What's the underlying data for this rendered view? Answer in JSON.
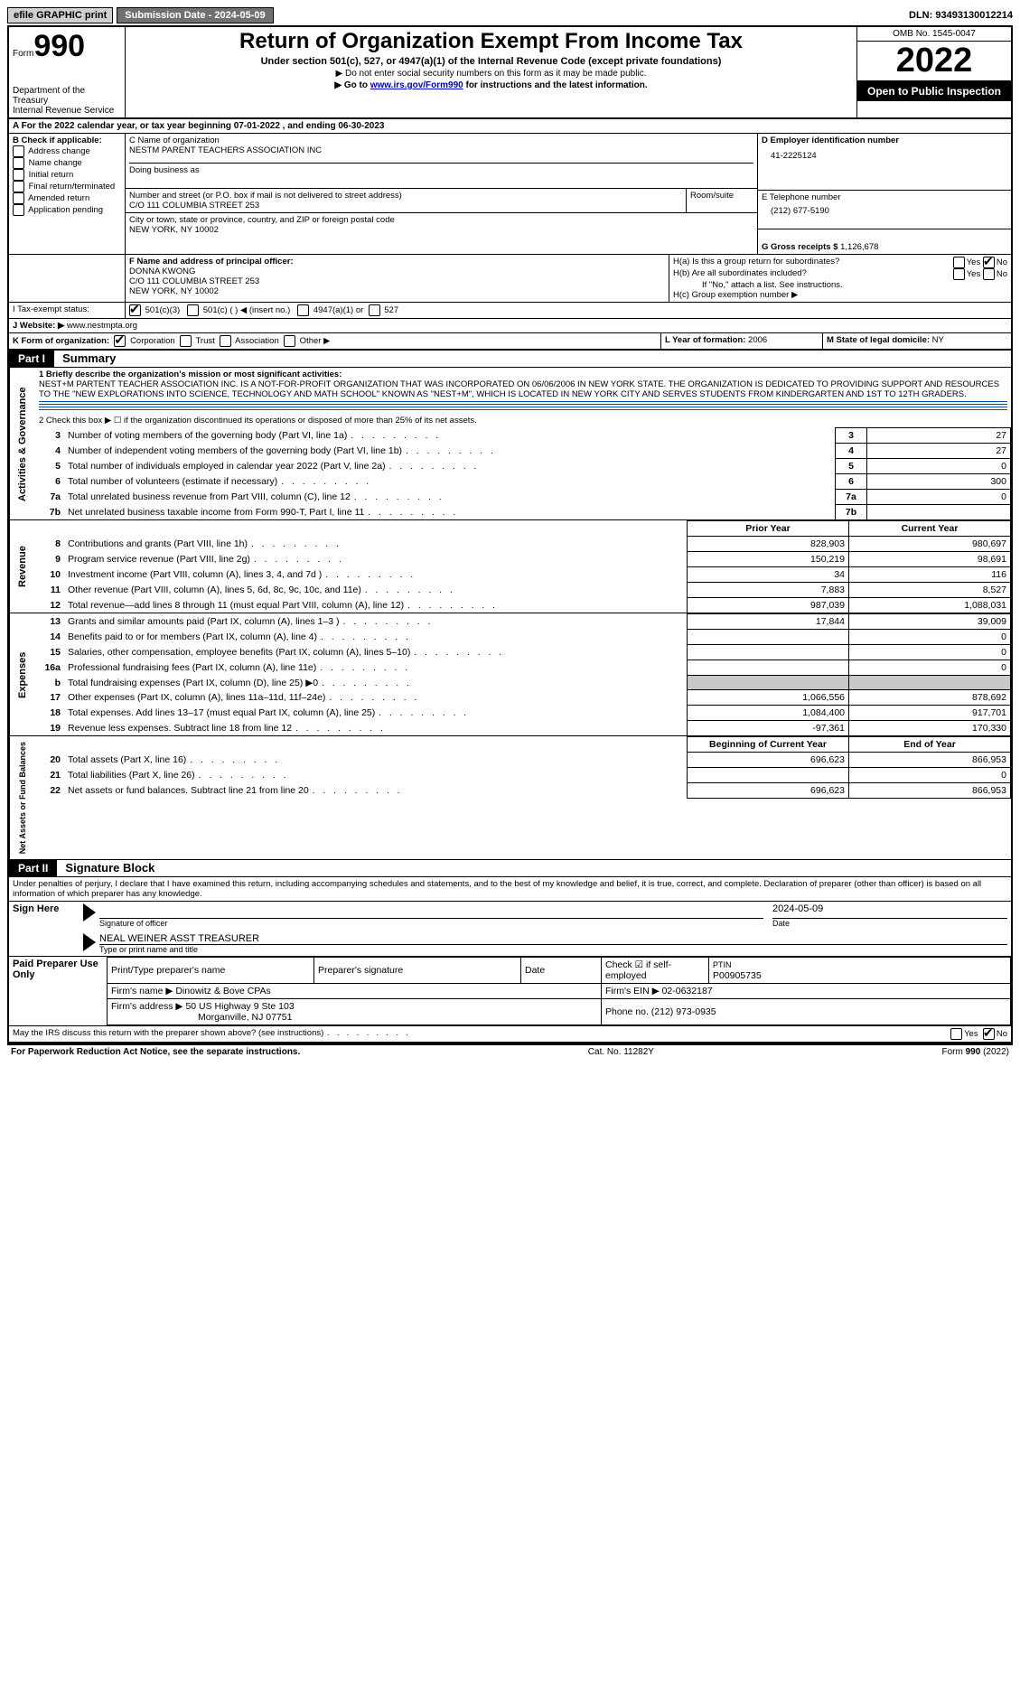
{
  "topbar": {
    "efile": "efile GRAPHIC print",
    "submission_label": "Submission Date - ",
    "submission_date": "2024-05-09",
    "dln_label": "DLN: ",
    "dln": "93493130012214"
  },
  "header": {
    "form_label": "Form",
    "form_number": "990",
    "dept1": "Department of the Treasury",
    "dept2": "Internal Revenue Service",
    "title": "Return of Organization Exempt From Income Tax",
    "sub1": "Under section 501(c), 527, or 4947(a)(1) of the Internal Revenue Code (except private foundations)",
    "sub2": "▶ Do not enter social security numbers on this form as it may be made public.",
    "sub3a": "▶ Go to ",
    "sub3_link": "www.irs.gov/Form990",
    "sub3b": " for instructions and the latest information.",
    "omb": "OMB No. 1545-0047",
    "year": "2022",
    "open": "Open to Public Inspection"
  },
  "section_a": {
    "text_a": "A For the 2022 calendar year, or tax year beginning ",
    "begin": "07-01-2022",
    "text_b": "   , and ending ",
    "end": "06-30-2023"
  },
  "box_b": {
    "label": "B Check if applicable:",
    "items": [
      "Address change",
      "Name change",
      "Initial return",
      "Final return/terminated",
      "Amended return",
      "Application pending"
    ]
  },
  "box_c": {
    "label": "C Name of organization",
    "name": "NESTM PARENT TEACHERS ASSOCIATION INC",
    "dba_label": "Doing business as",
    "addr_label": "Number and street (or P.O. box if mail is not delivered to street address)",
    "room_label": "Room/suite",
    "addr": "C/O 111 COLUMBIA STREET 253",
    "city_label": "City or town, state or province, country, and ZIP or foreign postal code",
    "city": "NEW YORK, NY  10002"
  },
  "box_d": {
    "label": "D Employer identification number",
    "ein": "41-2225124"
  },
  "box_e": {
    "label": "E Telephone number",
    "phone": "(212) 677-5190"
  },
  "box_g": {
    "label": "G Gross receipts $ ",
    "amount": "1,126,678"
  },
  "box_f": {
    "label": "F Name and address of principal officer:",
    "name": "DONNA KWONG",
    "addr1": "C/O 111 COLUMBIA STREET 253",
    "addr2": "NEW YORK, NY  10002"
  },
  "box_h": {
    "ha": "H(a)  Is this a group return for subordinates?",
    "hb": "H(b)  Are all subordinates included?",
    "hb_note": "If \"No,\" attach a list. See instructions.",
    "hc": "H(c)  Group exemption number ▶",
    "yes": "Yes",
    "no": "No"
  },
  "box_i": {
    "label": "I   Tax-exempt status:",
    "opt1": "501(c)(3)",
    "opt2": "501(c) (   ) ◀ (insert no.)",
    "opt3": "4947(a)(1) or",
    "opt4": "527"
  },
  "box_j": {
    "label": "J   Website: ▶ ",
    "value": "www.nestmpta.org"
  },
  "box_k": {
    "label": "K Form of organization:",
    "opts": [
      "Corporation",
      "Trust",
      "Association",
      "Other ▶"
    ]
  },
  "box_l": {
    "label": "L Year of formation: ",
    "value": "2006"
  },
  "box_m": {
    "label": "M State of legal domicile: ",
    "value": "NY"
  },
  "part1": {
    "header": "Part I",
    "title": "Summary",
    "line1_label": "1  Briefly describe the organization's mission or most significant activities:",
    "line1_text": "NEST+M PARTENT TEACHER ASSOCIATION INC. IS A NOT-FOR-PROFIT ORGANIZATION THAT WAS INCORPORATED ON 06/06/2006 IN NEW YORK STATE. THE ORGANIZATION IS DEDICATED TO PROVIDING SUPPORT AND RESOURCES TO THE \"NEW EXPLORATIONS INTO SCIENCE, TECHNOLOGY AND MATH SCHOOL\" KNOWN AS \"NEST+M\", WHICH IS LOCATED IN NEW YORK CITY AND SERVES STUDENTS FROM KINDERGARTEN AND 1ST TO 12TH GRADERS.",
    "line2": "2   Check this box ▶ ☐  if the organization discontinued its operations or disposed of more than 25% of its net assets.",
    "governance_rows": [
      {
        "n": "3",
        "text": "Number of voting members of the governing body (Part VI, line 1a)",
        "val": "27"
      },
      {
        "n": "4",
        "text": "Number of independent voting members of the governing body (Part VI, line 1b)",
        "val": "27"
      },
      {
        "n": "5",
        "text": "Total number of individuals employed in calendar year 2022 (Part V, line 2a)",
        "val": "0"
      },
      {
        "n": "6",
        "text": "Total number of volunteers (estimate if necessary)",
        "val": "300"
      },
      {
        "n": "7a",
        "text": "Total unrelated business revenue from Part VIII, column (C), line 12",
        "val": "0"
      },
      {
        "n": "7b",
        "text": "Net unrelated business taxable income from Form 990-T, Part I, line 11",
        "val": ""
      }
    ],
    "col_prior": "Prior Year",
    "col_current": "Current Year",
    "revenue_rows": [
      {
        "n": "8",
        "text": "Contributions and grants (Part VIII, line 1h)",
        "p": "828,903",
        "c": "980,697"
      },
      {
        "n": "9",
        "text": "Program service revenue (Part VIII, line 2g)",
        "p": "150,219",
        "c": "98,691"
      },
      {
        "n": "10",
        "text": "Investment income (Part VIII, column (A), lines 3, 4, and 7d )",
        "p": "34",
        "c": "116"
      },
      {
        "n": "11",
        "text": "Other revenue (Part VIII, column (A), lines 5, 6d, 8c, 9c, 10c, and 11e)",
        "p": "7,883",
        "c": "8,527"
      },
      {
        "n": "12",
        "text": "Total revenue—add lines 8 through 11 (must equal Part VIII, column (A), line 12)",
        "p": "987,039",
        "c": "1,088,031"
      }
    ],
    "expense_rows": [
      {
        "n": "13",
        "text": "Grants and similar amounts paid (Part IX, column (A), lines 1–3 )",
        "p": "17,844",
        "c": "39,009"
      },
      {
        "n": "14",
        "text": "Benefits paid to or for members (Part IX, column (A), line 4)",
        "p": "",
        "c": "0"
      },
      {
        "n": "15",
        "text": "Salaries, other compensation, employee benefits (Part IX, column (A), lines 5–10)",
        "p": "",
        "c": "0"
      },
      {
        "n": "16a",
        "text": "Professional fundraising fees (Part IX, column (A), line 11e)",
        "p": "",
        "c": "0"
      },
      {
        "n": "b",
        "text": "Total fundraising expenses (Part IX, column (D), line 25) ▶0",
        "p": "GRAY",
        "c": "GRAY"
      },
      {
        "n": "17",
        "text": "Other expenses (Part IX, column (A), lines 11a–11d, 11f–24e)",
        "p": "1,066,556",
        "c": "878,692"
      },
      {
        "n": "18",
        "text": "Total expenses. Add lines 13–17 (must equal Part IX, column (A), line 25)",
        "p": "1,084,400",
        "c": "917,701"
      },
      {
        "n": "19",
        "text": "Revenue less expenses. Subtract line 18 from line 12",
        "p": "-97,361",
        "c": "170,330"
      }
    ],
    "col_begin": "Beginning of Current Year",
    "col_end": "End of Year",
    "netassets_rows": [
      {
        "n": "20",
        "text": "Total assets (Part X, line 16)",
        "p": "696,623",
        "c": "866,953"
      },
      {
        "n": "21",
        "text": "Total liabilities (Part X, line 26)",
        "p": "",
        "c": "0"
      },
      {
        "n": "22",
        "text": "Net assets or fund balances. Subtract line 21 from line 20",
        "p": "696,623",
        "c": "866,953"
      }
    ],
    "vert_gov": "Activities & Governance",
    "vert_rev": "Revenue",
    "vert_exp": "Expenses",
    "vert_net": "Net Assets or Fund Balances"
  },
  "part2": {
    "header": "Part II",
    "title": "Signature Block",
    "penalties": "Under penalties of perjury, I declare that I have examined this return, including accompanying schedules and statements, and to the best of my knowledge and belief, it is true, correct, and complete. Declaration of preparer (other than officer) is based on all information of which preparer has any knowledge.",
    "sign_here": "Sign Here",
    "sig_officer": "Signature of officer",
    "date_label": "Date",
    "sig_date": "2024-05-09",
    "type_name": "NEAL WEINER  ASST TREASURER",
    "type_label": "Type or print name and title",
    "paid": "Paid Preparer Use Only",
    "prep_name_label": "Print/Type preparer's name",
    "prep_sig_label": "Preparer's signature",
    "prep_date_label": "Date",
    "check_if": "Check ☑ if self-employed",
    "ptin_label": "PTIN",
    "ptin": "P00905735",
    "firm_name_label": "Firm's name    ▶ ",
    "firm_name": "Dinowitz & Bove CPAs",
    "firm_ein_label": "Firm's EIN ▶ ",
    "firm_ein": "02-0632187",
    "firm_addr_label": "Firm's address ▶ ",
    "firm_addr1": "50 US Highway 9 Ste 103",
    "firm_addr2": "Morganville, NJ  07751",
    "phone_label": "Phone no. ",
    "phone": "(212) 973-0935",
    "may_irs": "May the IRS discuss this return with the preparer shown above? (see instructions)"
  },
  "footer": {
    "left": "For Paperwork Reduction Act Notice, see the separate instructions.",
    "center": "Cat. No. 11282Y",
    "right": "Form 990 (2022)"
  }
}
